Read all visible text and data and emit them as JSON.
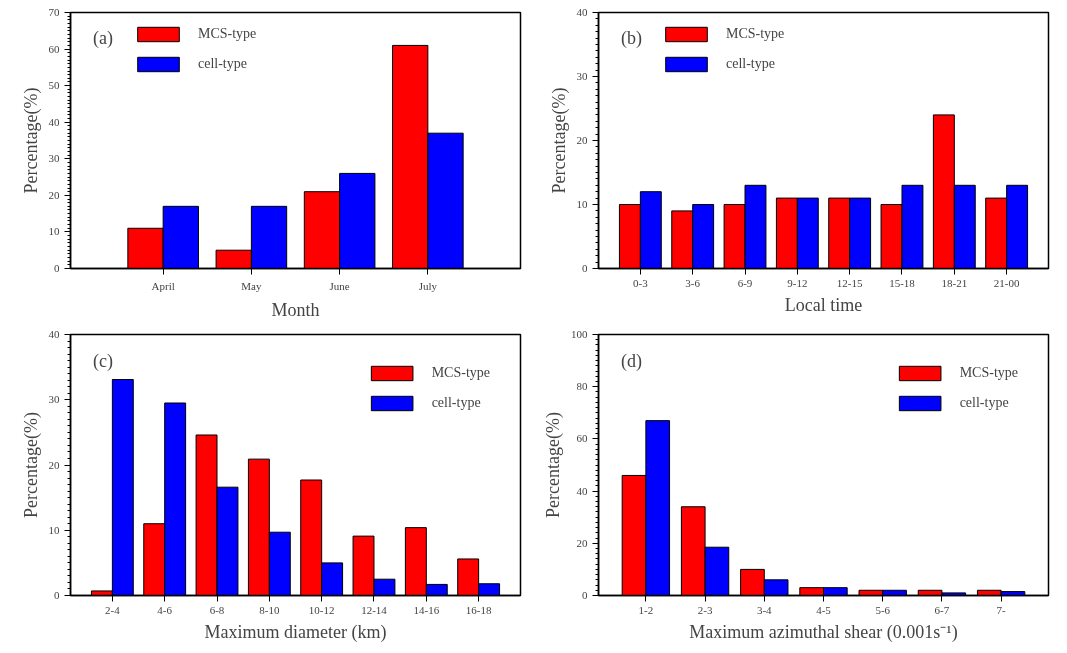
{
  "chart_data": [
    {
      "type": "bar",
      "annotations": [
        "(a)"
      ],
      "xlabel": "Month",
      "ylabel": "Percentage(%)",
      "categories": [
        "April",
        "May",
        "June",
        "July"
      ],
      "ylim": [
        0,
        70
      ],
      "yticks": [
        0,
        10,
        20,
        30,
        40,
        50,
        60,
        70
      ],
      "grid": false,
      "legend": "top left",
      "series": [
        {
          "name": "MCS-type",
          "color": "#ff0000",
          "values": [
            11,
            5,
            21,
            61
          ]
        },
        {
          "name": "cell-type",
          "color": "#0000ff",
          "values": [
            17,
            17,
            26,
            37
          ]
        }
      ]
    },
    {
      "type": "bar",
      "annotations": [
        "(b)"
      ],
      "xlabel": "Local time",
      "ylabel": "Percentage(%)",
      "categories": [
        "0-3",
        "3-6",
        "6-9",
        "9-12",
        "12-15",
        "15-18",
        "18-21",
        "21-00"
      ],
      "ylim": [
        0,
        40
      ],
      "yticks": [
        0,
        10,
        20,
        30,
        40
      ],
      "grid": false,
      "legend": "top left",
      "series": [
        {
          "name": "MCS-type",
          "color": "#ff0000",
          "values": [
            10,
            9,
            10,
            11,
            11,
            10,
            24,
            11
          ]
        },
        {
          "name": "cell-type",
          "color": "#0000ff",
          "values": [
            12,
            10,
            13,
            11,
            11,
            13,
            13,
            13
          ]
        }
      ]
    },
    {
      "type": "bar",
      "annotations": [
        "(c)"
      ],
      "xlabel": "Maximum diameter (km)",
      "ylabel": "Percentage(%)",
      "categories": [
        "2-4",
        "4-6",
        "6-8",
        "8-10",
        "10-12",
        "12-14",
        "14-16",
        "16-18"
      ],
      "ylim": [
        0,
        40
      ],
      "yticks": [
        0,
        10,
        20,
        30,
        40
      ],
      "grid": false,
      "legend": "top right",
      "series": [
        {
          "name": "MCS-type",
          "color": "#ff0000",
          "values": [
            0.7,
            11,
            24.6,
            20.9,
            17.7,
            9.1,
            10.4,
            5.6
          ]
        },
        {
          "name": "cell-type",
          "color": "#0000ff",
          "values": [
            33.1,
            29.5,
            16.6,
            9.7,
            5,
            2.5,
            1.7,
            1.8
          ]
        }
      ]
    },
    {
      "type": "bar",
      "annotations": [
        "(d)"
      ],
      "xlabel": "Maximum azimuthal shear (0.001s⁻¹)",
      "ylabel": "Percentage(%)",
      "categories": [
        "1-2",
        "2-3",
        "3-4",
        "4-5",
        "5-6",
        "6-7",
        "7-"
      ],
      "ylim": [
        0,
        100
      ],
      "yticks": [
        0,
        20,
        40,
        60,
        80,
        100
      ],
      "grid": false,
      "legend": "top right",
      "series": [
        {
          "name": "MCS-type",
          "color": "#ff0000",
          "values": [
            46,
            34,
            10,
            3,
            2,
            2,
            2
          ]
        },
        {
          "name": "cell-type",
          "color": "#0000ff",
          "values": [
            67,
            18.5,
            6,
            3,
            2,
            1,
            1.5
          ]
        }
      ]
    }
  ]
}
